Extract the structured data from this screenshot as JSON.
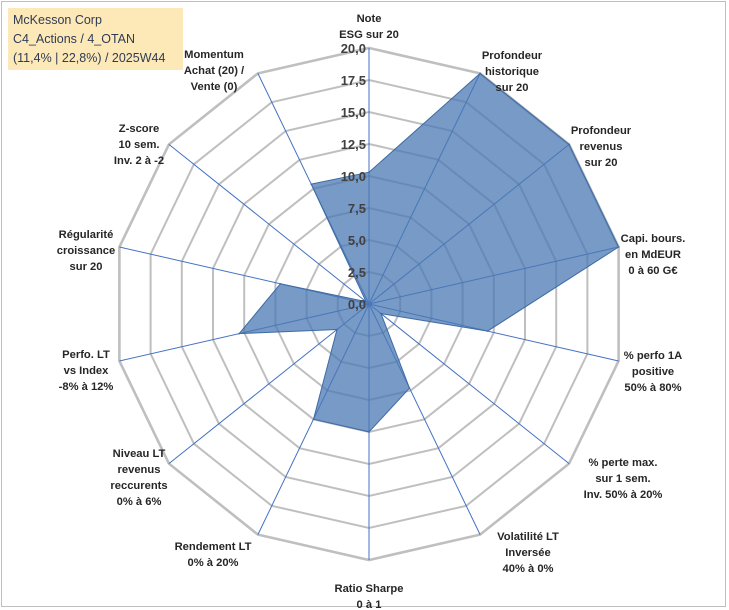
{
  "header": {
    "line1": "McKesson Corp",
    "line2": "C4_Actions / 4_OTAN",
    "line3": "(11,4% | 22,8%) / 2025W44"
  },
  "chart_data": {
    "type": "radar",
    "title": "",
    "range": [
      0,
      20
    ],
    "ticks": [
      "0,0",
      "2,5",
      "5,0",
      "7,5",
      "10,0",
      "12,5",
      "15,0",
      "17,5",
      "20,0"
    ],
    "tick_values": [
      0,
      2.5,
      5,
      7.5,
      10,
      12.5,
      15,
      17.5,
      20
    ],
    "grid": true,
    "legend": "none",
    "colors": {
      "fill": "#4a78b4",
      "fill_opacity": 0.75,
      "stroke": "#3e6aa3",
      "grid": "#bfbfbf",
      "spoke": "#4472c4"
    },
    "categories": [
      "Note ESG sur 20",
      "Profondeur historique sur 20",
      "Profondeur revenus sur 20",
      "Capi. bours. en MdEUR 0 à 60 G€",
      "% perfo 1A positive 50% à 80%",
      "% perte max. sur 1 sem. Inv. 50% à 20%",
      "Volatilité LT Inversée 40% à 0%",
      "Ratio Sharpe 0 à 1",
      "Rendement LT 0% à 20%",
      "Niveau LT revenus reccurents 0% à 6%",
      "Perfo. LT vs Index -8% à 12%",
      "Régularité croissance sur 20",
      "Z-score 10 sem. Inv. 2 à -2",
      "Momentum Achat (20) / Vente (0)"
    ],
    "category_lines": [
      [
        "Note",
        "ESG sur 20"
      ],
      [
        "Profondeur",
        "historique",
        "sur 20"
      ],
      [
        "Profondeur",
        "revenus",
        "sur 20"
      ],
      [
        "Capi. bours.",
        "en MdEUR",
        "0 à 60 G€"
      ],
      [
        "% perfo 1A",
        "positive",
        "50% à 80%"
      ],
      [
        "% perte max.",
        "sur 1 sem.",
        "Inv. 50% à 20%"
      ],
      [
        "Volatilité LT",
        "Inversée",
        "40% à 0%"
      ],
      [
        "Ratio Sharpe",
        "0 à 1"
      ],
      [
        "Rendement LT",
        "0% à 20%"
      ],
      [
        "Niveau LT",
        "revenus",
        "reccurents",
        "0% à 6%"
      ],
      [
        "Perfo. LT",
        "vs Index",
        "-8% à 12%"
      ],
      [
        "Régularité",
        "croissance",
        "sur 20"
      ],
      [
        "Z-score",
        "10 sem.",
        "Inv. 2 à -2"
      ],
      [
        "Momentum",
        "Achat (20) /",
        "Vente (0)"
      ]
    ],
    "series": [
      {
        "values": [
          10.3,
          20,
          20,
          20,
          9.5,
          1.2,
          7.3,
          10.0,
          10.0,
          3.2,
          10.4,
          7.1,
          0.3,
          10.4
        ]
      }
    ]
  }
}
